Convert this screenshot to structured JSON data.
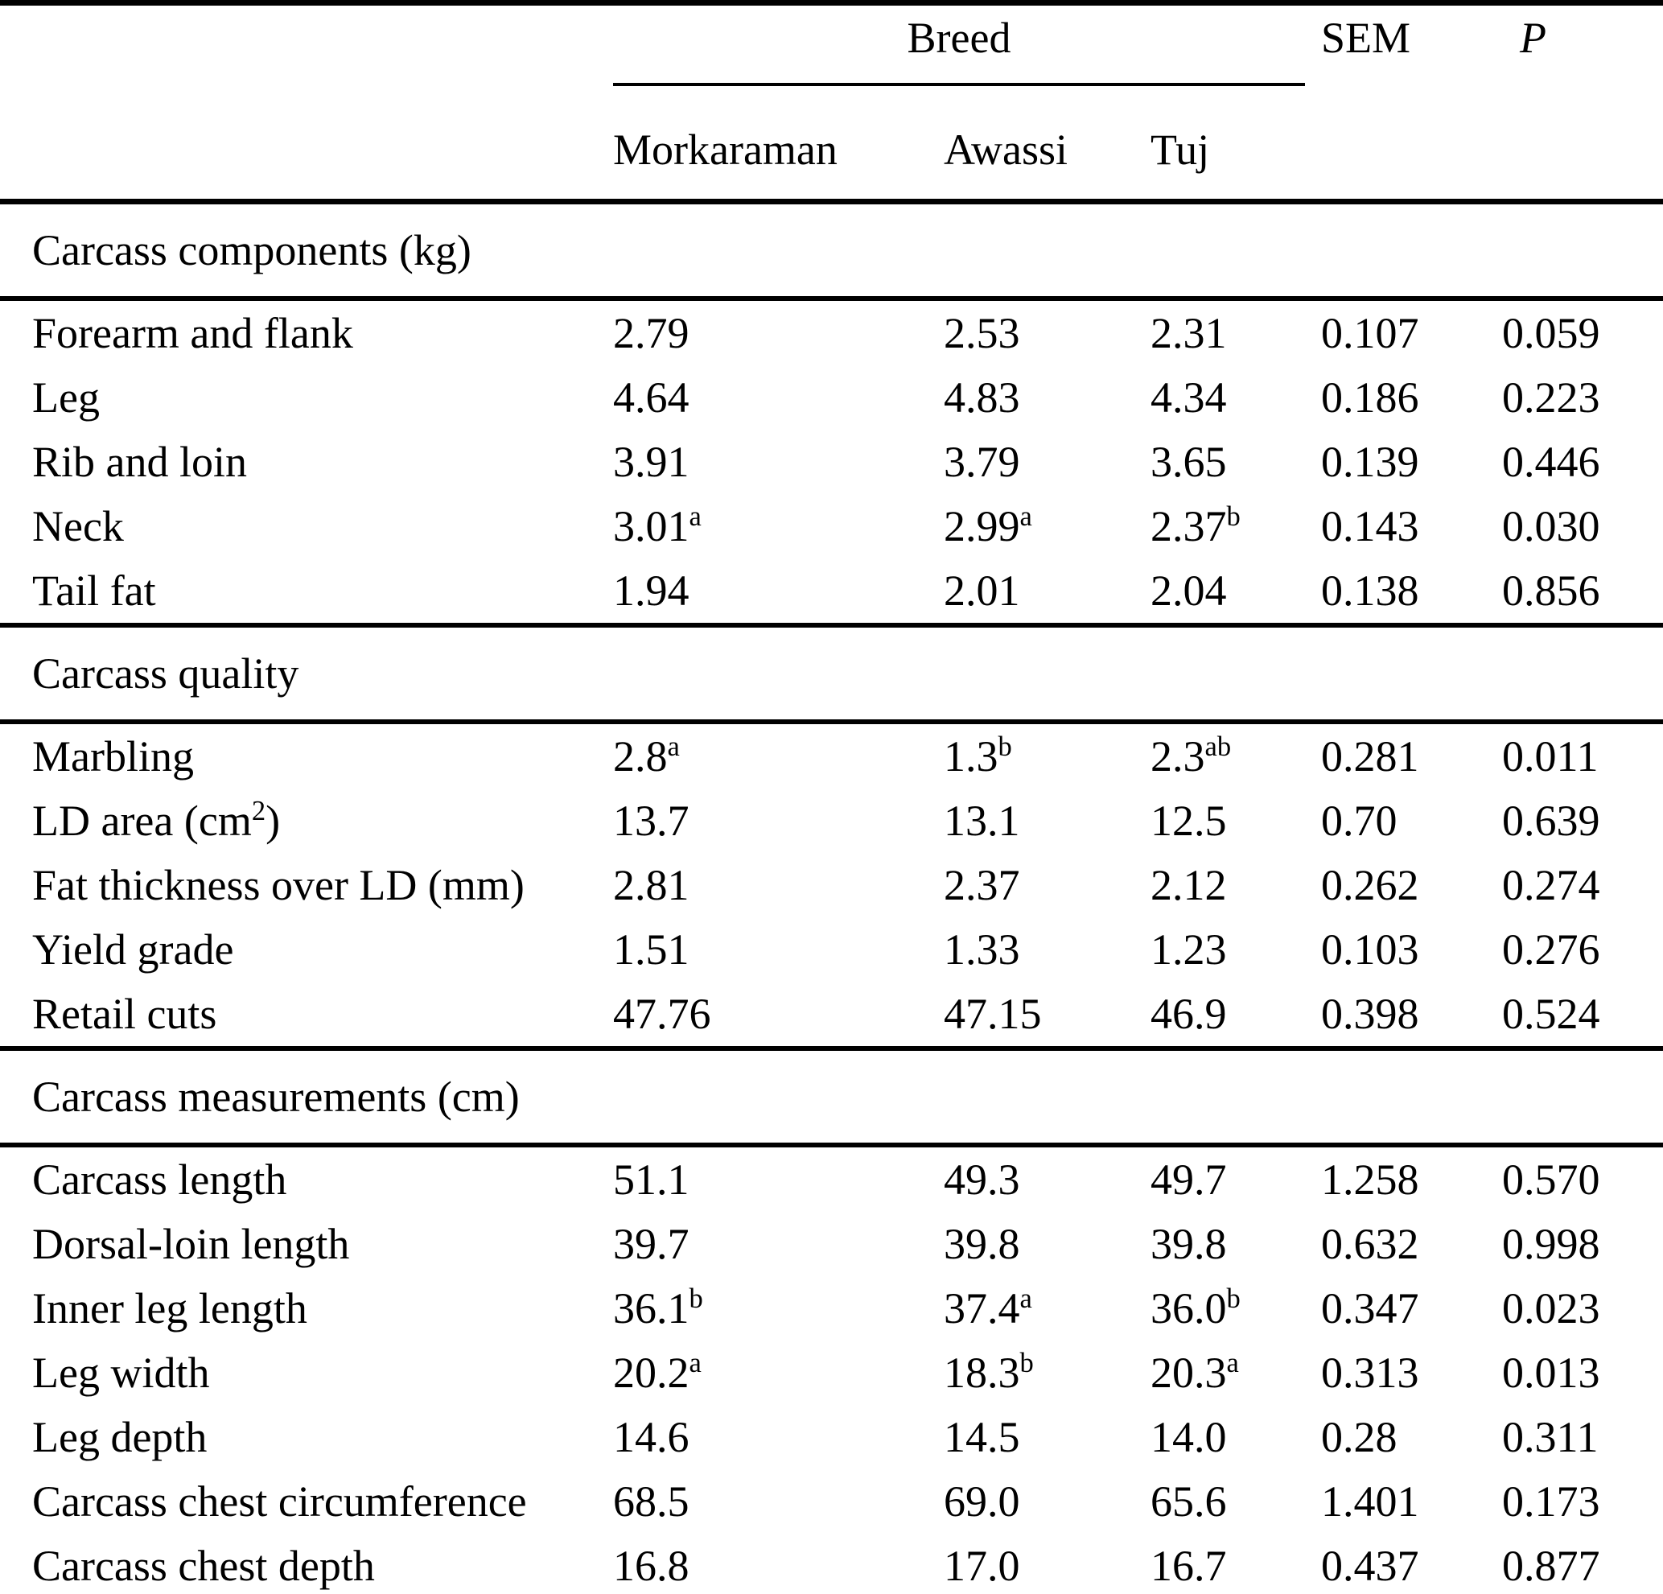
{
  "table": {
    "header": {
      "breed_group_label": "Breed",
      "sem_label": "SEM",
      "p_label": "P",
      "breed_columns": [
        "Morkaraman",
        "Awassi",
        "Tuj"
      ]
    },
    "sections": [
      {
        "title": "Carcass components (kg)",
        "rows": [
          {
            "label": "Forearm and flank",
            "cells": [
              "2.79",
              "2.53",
              "2.31",
              "0.107",
              "0.059"
            ]
          },
          {
            "label": "Leg",
            "cells": [
              "4.64",
              "4.83",
              "4.34",
              "0.186",
              "0.223"
            ]
          },
          {
            "label": "Rib and loin",
            "cells": [
              "3.91",
              "3.79",
              "3.65",
              "0.139",
              "0.446"
            ]
          },
          {
            "label": "Neck",
            "cells": [
              "3.01^a^",
              "2.99^a^",
              "2.37^b^",
              "0.143",
              "0.030"
            ]
          },
          {
            "label": "Tail fat",
            "cells": [
              "1.94",
              "2.01",
              "2.04",
              "0.138",
              "0.856"
            ]
          }
        ]
      },
      {
        "title": "Carcass quality",
        "rows": [
          {
            "label": "Marbling",
            "cells": [
              "2.8^a^",
              "1.3^b^",
              "2.3^ab^",
              "0.281",
              "0.011"
            ]
          },
          {
            "label": "LD area (cm^2^)",
            "cells": [
              "13.7",
              "13.1",
              "12.5",
              "0.70",
              "0.639"
            ]
          },
          {
            "label": "Fat thickness over LD (mm)",
            "cells": [
              "2.81",
              "2.37",
              "2.12",
              "0.262",
              "0.274"
            ]
          },
          {
            "label": "Yield grade",
            "cells": [
              "1.51",
              "1.33",
              "1.23",
              "0.103",
              "0.276"
            ]
          },
          {
            "label": "Retail cuts",
            "cells": [
              "47.76",
              "47.15",
              "46.9",
              "0.398",
              "0.524"
            ]
          }
        ]
      },
      {
        "title": "Carcass measurements (cm)",
        "rows": [
          {
            "label": "Carcass length",
            "cells": [
              "51.1",
              "49.3",
              "49.7",
              "1.258",
              "0.570"
            ]
          },
          {
            "label": "Dorsal-loin length",
            "cells": [
              "39.7",
              "39.8",
              "39.8",
              "0.632",
              "0.998"
            ]
          },
          {
            "label": "Inner leg length",
            "cells": [
              "36.1^b^",
              "37.4^a^",
              "36.0^b^",
              "0.347",
              "0.023"
            ]
          },
          {
            "label": "Leg width",
            "cells": [
              "20.2^a^",
              "18.3^b^",
              "20.3^a^",
              "0.313",
              "0.013"
            ]
          },
          {
            "label": "Leg depth",
            "cells": [
              "14.6",
              "14.5",
              "14.0",
              "0.28",
              "0.311"
            ]
          },
          {
            "label": "Carcass chest circumference",
            "cells": [
              "68.5",
              "69.0",
              "65.6",
              "1.401",
              "0.173"
            ]
          },
          {
            "label": "Carcass chest depth",
            "cells": [
              "16.8",
              "17.0",
              "16.7",
              "0.437",
              "0.877"
            ]
          }
        ]
      }
    ]
  }
}
